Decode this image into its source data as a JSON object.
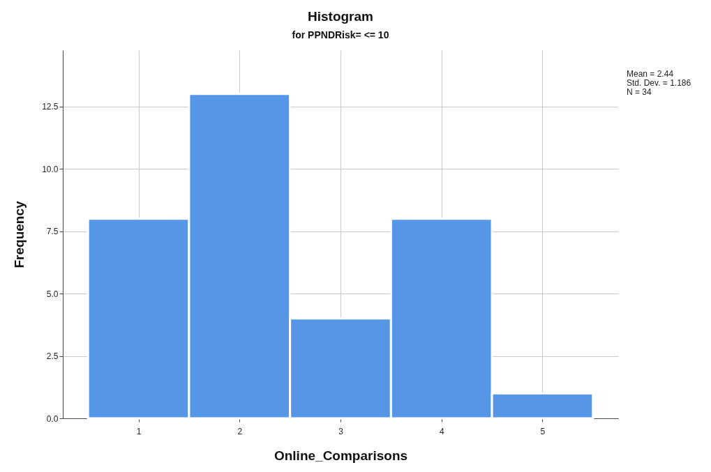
{
  "chart_data": {
    "type": "histogram",
    "title": "Histogram",
    "subtitle": "for PPNDRisk= <= 10",
    "xlabel": "Online_Comparisons",
    "ylabel": "Frequency",
    "bins": [
      0.5,
      1.5,
      2.5,
      3.5,
      4.5,
      5.5
    ],
    "values": [
      8,
      13,
      4,
      8,
      1
    ],
    "color": "#5596e6",
    "xlim": [
      0.25,
      5.75
    ],
    "xticks": [
      1,
      2,
      3,
      4,
      5
    ],
    "ylim": [
      0,
      14.75
    ],
    "yticks": [
      {
        "value": 0,
        "label": "0.0"
      },
      {
        "value": 2.5,
        "label": "2.5"
      },
      {
        "value": 5,
        "label": "5.0"
      },
      {
        "value": 7.5,
        "label": "7.5"
      },
      {
        "value": 10,
        "label": "10.0"
      },
      12.5
    ],
    "grid": true,
    "annotations": [
      "Mean = 2.44",
      "Std. Dev. = 1.186",
      "N = 34"
    ]
  }
}
